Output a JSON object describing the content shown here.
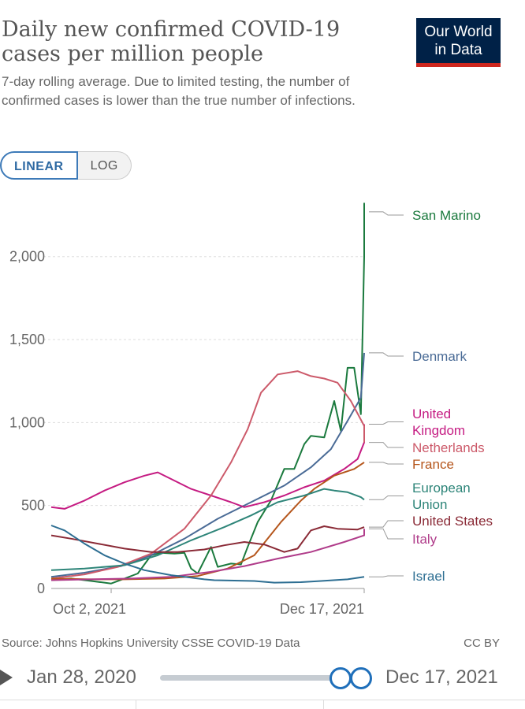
{
  "title": "Daily new confirmed COVID-19 cases per million people",
  "subtitle": "7-day rolling average. Due to limited testing, the number of confirmed cases is lower than the true number of infections.",
  "logo": {
    "line1": "Our World",
    "line2": "in Data",
    "color": "#002147",
    "bar_color": "#ce261e"
  },
  "scale_toggle": {
    "linear_label": "LINEAR",
    "log_label": "LOG",
    "selected": "LINEAR"
  },
  "source": "Source: Johns Hopkins University CSSE COVID-19 Data",
  "license": "CC BY",
  "timeline": {
    "start_label": "Jan 28, 2020",
    "end_label": "Dec 17, 2021",
    "play_icon": "play-icon"
  },
  "chart_data": {
    "type": "line",
    "x_start": "2021-09-14",
    "x_end": "2021-12-17",
    "xticks": [
      {
        "date": "2021-10-02",
        "label": "Oct 2, 2021"
      },
      {
        "date": "2021-12-17",
        "label": "Dec 17, 2021"
      }
    ],
    "ylim": [
      0,
      2350
    ],
    "yticks": [
      {
        "value": 0,
        "label": "0"
      },
      {
        "value": 500,
        "label": "500"
      },
      {
        "value": 1000,
        "label": "1,000"
      },
      {
        "value": 1500,
        "label": "1,500"
      },
      {
        "value": 2000,
        "label": "2,000"
      }
    ],
    "grid": true,
    "legend": "right-inline",
    "series": [
      {
        "name": "San Marino",
        "color": "#1b7a3e",
        "points": [
          [
            "2021-09-14",
            50
          ],
          [
            "2021-09-20",
            60
          ],
          [
            "2021-09-26",
            45
          ],
          [
            "2021-10-02",
            30
          ],
          [
            "2021-10-06",
            60
          ],
          [
            "2021-10-10",
            90
          ],
          [
            "2021-10-14",
            200
          ],
          [
            "2021-10-17",
            215
          ],
          [
            "2021-10-21",
            210
          ],
          [
            "2021-10-24",
            215
          ],
          [
            "2021-10-26",
            120
          ],
          [
            "2021-10-28",
            90
          ],
          [
            "2021-11-01",
            250
          ],
          [
            "2021-11-03",
            130
          ],
          [
            "2021-11-07",
            150
          ],
          [
            "2021-11-10",
            145
          ],
          [
            "2021-11-12",
            250
          ],
          [
            "2021-11-15",
            400
          ],
          [
            "2021-11-19",
            530
          ],
          [
            "2021-11-23",
            720
          ],
          [
            "2021-11-26",
            720
          ],
          [
            "2021-11-29",
            870
          ],
          [
            "2021-12-01",
            920
          ],
          [
            "2021-12-05",
            910
          ],
          [
            "2021-12-08",
            1130
          ],
          [
            "2021-12-10",
            950
          ],
          [
            "2021-12-12",
            1330
          ],
          [
            "2021-12-14",
            1330
          ],
          [
            "2021-12-16",
            1050
          ],
          [
            "2021-12-18",
            2000
          ],
          [
            "2021-12-19",
            2320
          ],
          [
            "2021-12-20",
            2270
          ]
        ]
      },
      {
        "name": "Denmark",
        "color": "#4a6b96",
        "points": [
          [
            "2021-09-14",
            70
          ],
          [
            "2021-09-24",
            95
          ],
          [
            "2021-10-05",
            135
          ],
          [
            "2021-10-14",
            200
          ],
          [
            "2021-10-24",
            300
          ],
          [
            "2021-11-03",
            420
          ],
          [
            "2021-11-13",
            520
          ],
          [
            "2021-11-23",
            620
          ],
          [
            "2021-12-01",
            730
          ],
          [
            "2021-12-07",
            840
          ],
          [
            "2021-12-12",
            1010
          ],
          [
            "2021-12-16",
            1150
          ],
          [
            "2021-12-20",
            1420
          ]
        ]
      },
      {
        "name": "United Kingdom",
        "color": "#c51b82",
        "points": [
          [
            "2021-09-14",
            490
          ],
          [
            "2021-09-18",
            480
          ],
          [
            "2021-09-24",
            530
          ],
          [
            "2021-09-30",
            590
          ],
          [
            "2021-10-06",
            640
          ],
          [
            "2021-10-12",
            680
          ],
          [
            "2021-10-16",
            700
          ],
          [
            "2021-10-20",
            660
          ],
          [
            "2021-10-26",
            600
          ],
          [
            "2021-11-01",
            560
          ],
          [
            "2021-11-07",
            520
          ],
          [
            "2021-11-11",
            490
          ],
          [
            "2021-11-17",
            520
          ],
          [
            "2021-11-23",
            560
          ],
          [
            "2021-11-29",
            610
          ],
          [
            "2021-12-05",
            650
          ],
          [
            "2021-12-11",
            720
          ],
          [
            "2021-12-15",
            780
          ],
          [
            "2021-12-18",
            880
          ],
          [
            "2021-12-20",
            990
          ]
        ]
      },
      {
        "name": "Netherlands",
        "color": "#cc5a6a",
        "points": [
          [
            "2021-09-14",
            60
          ],
          [
            "2021-09-24",
            85
          ],
          [
            "2021-10-04",
            130
          ],
          [
            "2021-10-14",
            210
          ],
          [
            "2021-10-24",
            360
          ],
          [
            "2021-11-01",
            560
          ],
          [
            "2021-11-07",
            760
          ],
          [
            "2021-11-12",
            960
          ],
          [
            "2021-11-16",
            1180
          ],
          [
            "2021-11-21",
            1290
          ],
          [
            "2021-11-27",
            1310
          ],
          [
            "2021-12-01",
            1280
          ],
          [
            "2021-12-05",
            1265
          ],
          [
            "2021-12-09",
            1240
          ],
          [
            "2021-12-13",
            1130
          ],
          [
            "2021-12-17",
            980
          ],
          [
            "2021-12-20",
            880
          ]
        ]
      },
      {
        "name": "France",
        "color": "#b5561c",
        "points": [
          [
            "2021-09-14",
            60
          ],
          [
            "2021-09-26",
            55
          ],
          [
            "2021-10-06",
            55
          ],
          [
            "2021-10-18",
            60
          ],
          [
            "2021-10-28",
            75
          ],
          [
            "2021-11-06",
            120
          ],
          [
            "2021-11-14",
            200
          ],
          [
            "2021-11-22",
            400
          ],
          [
            "2021-11-28",
            530
          ],
          [
            "2021-12-02",
            600
          ],
          [
            "2021-12-08",
            680
          ],
          [
            "2021-12-14",
            720
          ],
          [
            "2021-12-20",
            760
          ]
        ]
      },
      {
        "name": "European Union",
        "color": "#2e8579",
        "points": [
          [
            "2021-09-14",
            110
          ],
          [
            "2021-09-24",
            120
          ],
          [
            "2021-10-06",
            140
          ],
          [
            "2021-10-16",
            200
          ],
          [
            "2021-10-26",
            290
          ],
          [
            "2021-11-05",
            370
          ],
          [
            "2021-11-13",
            440
          ],
          [
            "2021-11-21",
            520
          ],
          [
            "2021-11-29",
            560
          ],
          [
            "2021-12-05",
            600
          ],
          [
            "2021-12-08",
            590
          ],
          [
            "2021-12-12",
            580
          ],
          [
            "2021-12-16",
            550
          ],
          [
            "2021-12-20",
            535
          ]
        ]
      },
      {
        "name": "United States",
        "color": "#8a2a36",
        "points": [
          [
            "2021-09-14",
            320
          ],
          [
            "2021-09-20",
            300
          ],
          [
            "2021-09-28",
            270
          ],
          [
            "2021-10-06",
            240
          ],
          [
            "2021-10-14",
            220
          ],
          [
            "2021-10-22",
            220
          ],
          [
            "2021-10-30",
            235
          ],
          [
            "2021-11-05",
            260
          ],
          [
            "2021-11-11",
            280
          ],
          [
            "2021-11-17",
            265
          ],
          [
            "2021-11-19",
            250
          ],
          [
            "2021-11-23",
            220
          ],
          [
            "2021-11-27",
            240
          ],
          [
            "2021-12-01",
            350
          ],
          [
            "2021-12-05",
            375
          ],
          [
            "2021-12-09",
            360
          ],
          [
            "2021-12-15",
            355
          ],
          [
            "2021-12-20",
            370
          ]
        ]
      },
      {
        "name": "Italy",
        "color": "#b03c8a",
        "points": [
          [
            "2021-09-14",
            50
          ],
          [
            "2021-09-26",
            55
          ],
          [
            "2021-10-08",
            60
          ],
          [
            "2021-10-20",
            70
          ],
          [
            "2021-11-01",
            100
          ],
          [
            "2021-11-11",
            135
          ],
          [
            "2021-11-21",
            180
          ],
          [
            "2021-12-01",
            220
          ],
          [
            "2021-12-11",
            280
          ],
          [
            "2021-12-17",
            320
          ],
          [
            "2021-12-20",
            360
          ]
        ]
      },
      {
        "name": "Israel",
        "color": "#2d6e92",
        "points": [
          [
            "2021-09-14",
            380
          ],
          [
            "2021-09-18",
            350
          ],
          [
            "2021-09-24",
            270
          ],
          [
            "2021-09-30",
            200
          ],
          [
            "2021-10-06",
            150
          ],
          [
            "2021-10-12",
            110
          ],
          [
            "2021-10-20",
            80
          ],
          [
            "2021-10-26",
            65
          ],
          [
            "2021-10-30",
            55
          ],
          [
            "2021-11-02",
            50
          ],
          [
            "2021-11-14",
            45
          ],
          [
            "2021-11-20",
            35
          ],
          [
            "2021-11-28",
            38
          ],
          [
            "2021-12-04",
            45
          ],
          [
            "2021-12-12",
            55
          ],
          [
            "2021-12-20",
            70
          ]
        ]
      }
    ],
    "labels": [
      {
        "series": "San Marino",
        "lines": [
          "San Marino"
        ]
      },
      {
        "series": "Denmark",
        "lines": [
          "Denmark"
        ]
      },
      {
        "series": "United Kingdom",
        "lines": [
          "United",
          "Kingdom"
        ]
      },
      {
        "series": "Netherlands",
        "lines": [
          "Netherlands"
        ]
      },
      {
        "series": "France",
        "lines": [
          "France"
        ]
      },
      {
        "series": "European Union",
        "lines": [
          "European",
          "Union"
        ]
      },
      {
        "series": "United States",
        "lines": [
          "United States"
        ]
      },
      {
        "series": "Italy",
        "lines": [
          "Italy"
        ]
      },
      {
        "series": "Israel",
        "lines": [
          "Israel"
        ]
      }
    ]
  }
}
